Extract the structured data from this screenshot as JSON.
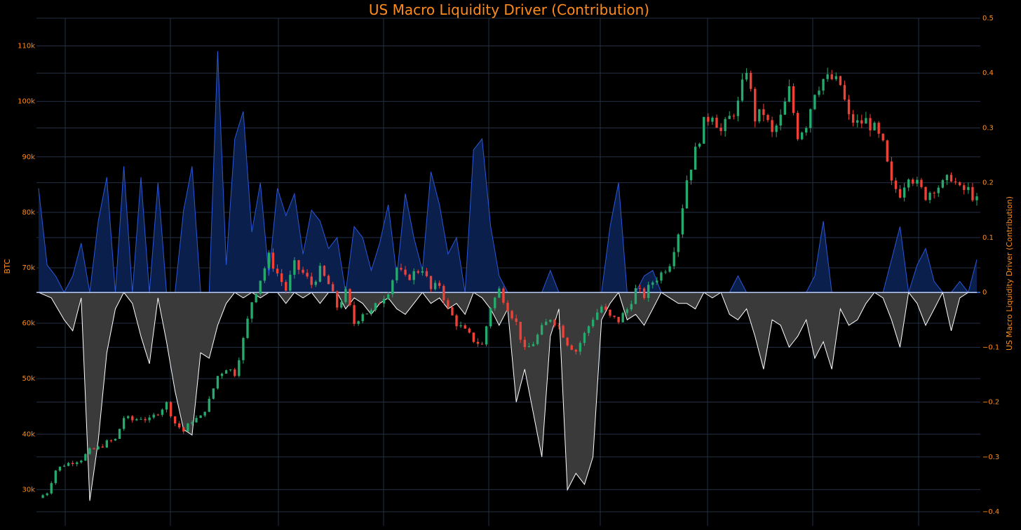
{
  "chart_data": {
    "type": "candlestick-with-area",
    "title": "US Macro Liquidity Driver (Contribution)",
    "y_left_label": "BTC",
    "y_right_label": "US Macro Liquidity Driver (Contribution)",
    "y_left_range": [
      26000,
      115000
    ],
    "y_left_ticks": [
      30000,
      40000,
      50000,
      60000,
      70000,
      80000,
      90000,
      100000,
      110000
    ],
    "y_left_tick_labels": [
      "30k",
      "40k",
      "50k",
      "60k",
      "70k",
      "80k",
      "90k",
      "100k",
      "110k"
    ],
    "y_right_range": [
      -0.4,
      0.5
    ],
    "y_right_ticks": [
      -0.4,
      -0.3,
      -0.2,
      -0.1,
      0,
      0.1,
      0.2,
      0.3,
      0.4,
      0.5
    ],
    "y_right_tick_labels": [
      "−0.4",
      "−0.3",
      "−0.2",
      "−0.1",
      "0",
      "0.1",
      "0.2",
      "0.3",
      "0.4",
      "0.5"
    ],
    "grid": true,
    "btc_close_anchors": [
      [
        0,
        28500
      ],
      [
        2,
        29500
      ],
      [
        4,
        33500
      ],
      [
        6,
        34500
      ],
      [
        8,
        35000
      ],
      [
        10,
        35500
      ],
      [
        12,
        37000
      ],
      [
        14,
        37500
      ],
      [
        16,
        38500
      ],
      [
        18,
        39000
      ],
      [
        20,
        43000
      ],
      [
        22,
        42500
      ],
      [
        24,
        43000
      ],
      [
        26,
        42500
      ],
      [
        28,
        44000
      ],
      [
        30,
        45500
      ],
      [
        32,
        42000
      ],
      [
        34,
        40500
      ],
      [
        36,
        42500
      ],
      [
        38,
        43000
      ],
      [
        40,
        46000
      ],
      [
        42,
        50500
      ],
      [
        44,
        52000
      ],
      [
        46,
        51000
      ],
      [
        48,
        57000
      ],
      [
        50,
        64000
      ],
      [
        52,
        68000
      ],
      [
        54,
        72000
      ],
      [
        56,
        69000
      ],
      [
        58,
        66000
      ],
      [
        60,
        70500
      ],
      [
        62,
        69000
      ],
      [
        64,
        67000
      ],
      [
        66,
        69500
      ],
      [
        68,
        67000
      ],
      [
        70,
        63000
      ],
      [
        72,
        65500
      ],
      [
        74,
        60000
      ],
      [
        76,
        62000
      ],
      [
        78,
        62000
      ],
      [
        80,
        64000
      ],
      [
        82,
        66000
      ],
      [
        84,
        70000
      ],
      [
        86,
        68000
      ],
      [
        88,
        69000
      ],
      [
        90,
        70000
      ],
      [
        92,
        66000
      ],
      [
        94,
        67000
      ],
      [
        96,
        62500
      ],
      [
        98,
        60000
      ],
      [
        100,
        58500
      ],
      [
        102,
        57000
      ],
      [
        104,
        56000
      ],
      [
        106,
        63000
      ],
      [
        108,
        66000
      ],
      [
        110,
        63000
      ],
      [
        112,
        60000
      ],
      [
        114,
        55000
      ],
      [
        116,
        56500
      ],
      [
        118,
        59000
      ],
      [
        120,
        61000
      ],
      [
        122,
        59500
      ],
      [
        124,
        56500
      ],
      [
        126,
        55000
      ],
      [
        128,
        58000
      ],
      [
        130,
        61000
      ],
      [
        132,
        63000
      ],
      [
        134,
        61000
      ],
      [
        136,
        60500
      ],
      [
        138,
        62500
      ],
      [
        140,
        66000
      ],
      [
        142,
        65000
      ],
      [
        144,
        67500
      ],
      [
        146,
        69000
      ],
      [
        148,
        71000
      ],
      [
        150,
        76500
      ],
      [
        152,
        86000
      ],
      [
        154,
        91000
      ],
      [
        156,
        96000
      ],
      [
        158,
        98000
      ],
      [
        160,
        94500
      ],
      [
        162,
        97000
      ],
      [
        164,
        99500
      ],
      [
        166,
        106000
      ],
      [
        168,
        97000
      ],
      [
        170,
        98000
      ],
      [
        172,
        94000
      ],
      [
        174,
        97000
      ],
      [
        176,
        102000
      ],
      [
        178,
        94000
      ],
      [
        180,
        96000
      ],
      [
        182,
        102000
      ],
      [
        184,
        104000
      ],
      [
        186,
        104000
      ],
      [
        188,
        103000
      ],
      [
        190,
        97000
      ],
      [
        192,
        96000
      ],
      [
        194,
        96500
      ],
      [
        196,
        95000
      ],
      [
        198,
        92000
      ],
      [
        200,
        85000
      ],
      [
        202,
        83500
      ],
      [
        204,
        87000
      ],
      [
        206,
        85000
      ],
      [
        208,
        83000
      ],
      [
        210,
        84500
      ],
      [
        212,
        85000
      ],
      [
        214,
        86500
      ],
      [
        216,
        84000
      ],
      [
        218,
        84000
      ],
      [
        220,
        82000
      ]
    ],
    "driver_anchors": [
      [
        0,
        0.19
      ],
      [
        2,
        0.05
      ],
      [
        4,
        0.03
      ],
      [
        6,
        0.0
      ],
      [
        8,
        0.03
      ],
      [
        10,
        0.09
      ],
      [
        12,
        0.0
      ],
      [
        14,
        0.13
      ],
      [
        16,
        0.21
      ],
      [
        18,
        0.0
      ],
      [
        20,
        0.23
      ],
      [
        22,
        0.0
      ],
      [
        24,
        0.21
      ],
      [
        26,
        0.0
      ],
      [
        28,
        0.2
      ],
      [
        30,
        0.0
      ],
      [
        32,
        0.0
      ],
      [
        34,
        0.15
      ],
      [
        36,
        0.23
      ],
      [
        38,
        0.0
      ],
      [
        40,
        0.0
      ],
      [
        42,
        0.44
      ],
      [
        44,
        0.05
      ],
      [
        46,
        0.28
      ],
      [
        48,
        0.33
      ],
      [
        50,
        0.11
      ],
      [
        52,
        0.2
      ],
      [
        54,
        0.03
      ],
      [
        56,
        0.19
      ],
      [
        58,
        0.14
      ],
      [
        60,
        0.18
      ],
      [
        62,
        0.07
      ],
      [
        64,
        0.15
      ],
      [
        66,
        0.13
      ],
      [
        68,
        0.08
      ],
      [
        70,
        0.1
      ],
      [
        72,
        0.0
      ],
      [
        74,
        0.12
      ],
      [
        76,
        0.1
      ],
      [
        78,
        0.04
      ],
      [
        80,
        0.09
      ],
      [
        82,
        0.16
      ],
      [
        84,
        0.03
      ],
      [
        86,
        0.18
      ],
      [
        88,
        0.1
      ],
      [
        90,
        0.04
      ],
      [
        92,
        0.22
      ],
      [
        94,
        0.16
      ],
      [
        96,
        0.07
      ],
      [
        98,
        0.1
      ],
      [
        100,
        0.0
      ],
      [
        102,
        0.26
      ],
      [
        104,
        0.28
      ],
      [
        106,
        0.12
      ],
      [
        108,
        0.03
      ],
      [
        110,
        0.0
      ],
      [
        112,
        0.0
      ],
      [
        114,
        0.0
      ],
      [
        116,
        0.0
      ],
      [
        118,
        0.0
      ],
      [
        120,
        0.04
      ],
      [
        122,
        0.0
      ],
      [
        124,
        0.0
      ],
      [
        126,
        0.0
      ],
      [
        128,
        0.0
      ],
      [
        130,
        0.0
      ],
      [
        132,
        0.0
      ],
      [
        134,
        0.12
      ],
      [
        136,
        0.2
      ],
      [
        138,
        0.0
      ],
      [
        140,
        0.0
      ],
      [
        142,
        0.03
      ],
      [
        144,
        0.04
      ],
      [
        146,
        0.0
      ],
      [
        148,
        0.0
      ],
      [
        150,
        0.0
      ],
      [
        152,
        0.0
      ],
      [
        154,
        0.0
      ],
      [
        156,
        0.0
      ],
      [
        158,
        0.0
      ],
      [
        160,
        0.0
      ],
      [
        162,
        0.0
      ],
      [
        164,
        0.03
      ],
      [
        166,
        0.0
      ],
      [
        168,
        0.0
      ],
      [
        170,
        0.0
      ],
      [
        172,
        0.0
      ],
      [
        174,
        0.0
      ],
      [
        176,
        0.0
      ],
      [
        178,
        0.0
      ],
      [
        180,
        0.0
      ],
      [
        182,
        0.03
      ],
      [
        184,
        0.13
      ],
      [
        186,
        0.0
      ],
      [
        188,
        0.0
      ],
      [
        190,
        0.0
      ],
      [
        192,
        0.0
      ],
      [
        194,
        0.0
      ],
      [
        196,
        0.0
      ],
      [
        198,
        0.0
      ],
      [
        200,
        0.06
      ],
      [
        202,
        0.12
      ],
      [
        204,
        0.0
      ],
      [
        206,
        0.05
      ],
      [
        208,
        0.08
      ],
      [
        210,
        0.02
      ],
      [
        212,
        0.0
      ],
      [
        214,
        0.0
      ],
      [
        216,
        0.02
      ],
      [
        218,
        0.0
      ],
      [
        220,
        0.06
      ]
    ],
    "driver_negative_anchors": [
      [
        0,
        0.0
      ],
      [
        3,
        -0.01
      ],
      [
        6,
        -0.05
      ],
      [
        8,
        -0.07
      ],
      [
        10,
        -0.01
      ],
      [
        12,
        -0.38
      ],
      [
        14,
        -0.27
      ],
      [
        16,
        -0.11
      ],
      [
        18,
        -0.03
      ],
      [
        20,
        0.0
      ],
      [
        22,
        -0.02
      ],
      [
        24,
        -0.08
      ],
      [
        26,
        -0.13
      ],
      [
        28,
        -0.01
      ],
      [
        30,
        -0.09
      ],
      [
        32,
        -0.18
      ],
      [
        34,
        -0.25
      ],
      [
        36,
        -0.26
      ],
      [
        38,
        -0.11
      ],
      [
        40,
        -0.12
      ],
      [
        42,
        -0.06
      ],
      [
        44,
        -0.02
      ],
      [
        46,
        0.0
      ],
      [
        48,
        -0.01
      ],
      [
        50,
        0.0
      ],
      [
        52,
        -0.01
      ],
      [
        54,
        0.0
      ],
      [
        56,
        0.0
      ],
      [
        58,
        -0.02
      ],
      [
        60,
        0.0
      ],
      [
        62,
        -0.01
      ],
      [
        64,
        0.0
      ],
      [
        66,
        -0.02
      ],
      [
        68,
        0.0
      ],
      [
        70,
        0.0
      ],
      [
        72,
        -0.03
      ],
      [
        74,
        -0.01
      ],
      [
        76,
        -0.02
      ],
      [
        78,
        -0.04
      ],
      [
        80,
        -0.02
      ],
      [
        82,
        -0.01
      ],
      [
        84,
        -0.03
      ],
      [
        86,
        -0.04
      ],
      [
        88,
        -0.02
      ],
      [
        90,
        0.0
      ],
      [
        92,
        -0.02
      ],
      [
        94,
        -0.01
      ],
      [
        96,
        -0.03
      ],
      [
        98,
        -0.02
      ],
      [
        100,
        -0.04
      ],
      [
        102,
        0.0
      ],
      [
        104,
        -0.01
      ],
      [
        106,
        -0.03
      ],
      [
        108,
        -0.06
      ],
      [
        110,
        -0.03
      ],
      [
        112,
        -0.2
      ],
      [
        114,
        -0.14
      ],
      [
        116,
        -0.22
      ],
      [
        118,
        -0.3
      ],
      [
        120,
        -0.08
      ],
      [
        122,
        -0.03
      ],
      [
        124,
        -0.36
      ],
      [
        126,
        -0.33
      ],
      [
        128,
        -0.35
      ],
      [
        130,
        -0.3
      ],
      [
        132,
        -0.05
      ],
      [
        134,
        -0.02
      ],
      [
        136,
        0.0
      ],
      [
        138,
        -0.05
      ],
      [
        140,
        -0.04
      ],
      [
        142,
        -0.06
      ],
      [
        144,
        -0.03
      ],
      [
        146,
        0.0
      ],
      [
        148,
        -0.01
      ],
      [
        150,
        -0.02
      ],
      [
        152,
        -0.02
      ],
      [
        154,
        -0.03
      ],
      [
        156,
        0.0
      ],
      [
        158,
        -0.01
      ],
      [
        160,
        0.0
      ],
      [
        162,
        -0.04
      ],
      [
        164,
        -0.05
      ],
      [
        166,
        -0.03
      ],
      [
        168,
        -0.08
      ],
      [
        170,
        -0.14
      ],
      [
        172,
        -0.05
      ],
      [
        174,
        -0.06
      ],
      [
        176,
        -0.1
      ],
      [
        178,
        -0.08
      ],
      [
        180,
        -0.05
      ],
      [
        182,
        -0.12
      ],
      [
        184,
        -0.09
      ],
      [
        186,
        -0.14
      ],
      [
        188,
        -0.03
      ],
      [
        190,
        -0.06
      ],
      [
        192,
        -0.05
      ],
      [
        194,
        -0.02
      ],
      [
        196,
        0.0
      ],
      [
        198,
        -0.01
      ],
      [
        200,
        -0.05
      ],
      [
        202,
        -0.1
      ],
      [
        204,
        0.0
      ],
      [
        206,
        -0.02
      ],
      [
        208,
        -0.06
      ],
      [
        210,
        -0.03
      ],
      [
        212,
        0.0
      ],
      [
        214,
        -0.07
      ],
      [
        216,
        -0.01
      ],
      [
        218,
        0.0
      ],
      [
        220,
        0.0
      ]
    ],
    "colors": {
      "background": "#000000",
      "grid": "#253045",
      "text": "#ff8c1a",
      "up_candle": "#26a96c",
      "down_candle": "#ef4136",
      "positive_line": "#2a57d8",
      "positive_fill": "#0b1f4d",
      "negative_line": "#ffffff",
      "negative_fill": "#3a3a3a",
      "zero_line": "#3a6ee8"
    }
  }
}
